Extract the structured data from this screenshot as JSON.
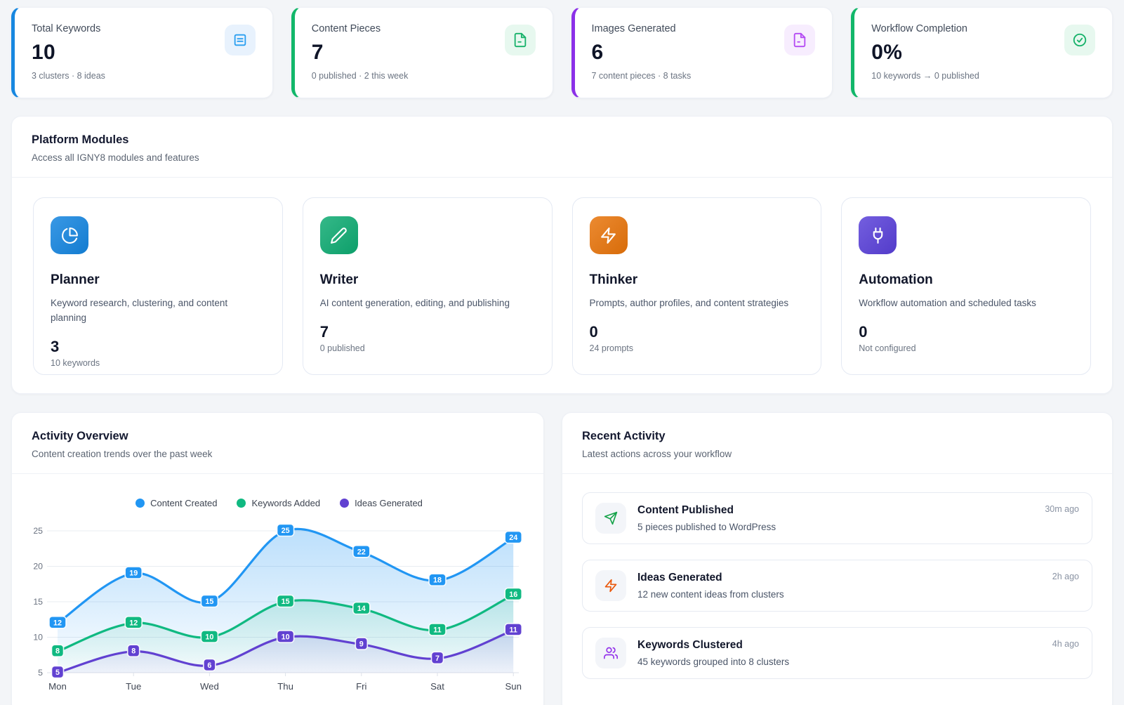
{
  "stats": [
    {
      "title": "Total Keywords",
      "value": "10",
      "subtitle": "3 clusters · 8 ideas",
      "accent": "#1787e0",
      "icon": "journal-list-icon",
      "icon_bg": "#e8f2fd",
      "icon_color": "#2b9ff0"
    },
    {
      "title": "Content Pieces",
      "value": "7",
      "subtitle": "0 published · 2 this week",
      "accent": "#12b76a",
      "icon": "file-text-icon",
      "icon_bg": "#e7f8ef",
      "icon_color": "#17b26a"
    },
    {
      "title": "Images Generated",
      "value": "6",
      "subtitle": "7 content pieces · 8 tasks",
      "accent": "#8b30e8",
      "icon": "image-file-icon",
      "icon_bg": "#f7edfe",
      "icon_color": "#b44af3"
    },
    {
      "title": "Workflow Completion",
      "value": "0%",
      "subtitle": "10 keywords → 0 published",
      "accent": "#12b76a",
      "icon": "check-circle-icon",
      "icon_bg": "#e7f8ef",
      "icon_color": "#17b26a"
    }
  ],
  "modules_section": {
    "title": "Platform Modules",
    "subtitle": "Access all IGNY8 modules and features"
  },
  "modules": [
    {
      "name": "Planner",
      "description": "Keyword research, clustering, and content planning",
      "value": "3",
      "caption": "10 keywords",
      "color": "#1485e0",
      "icon": "pie-chart-icon"
    },
    {
      "name": "Writer",
      "description": "AI content generation, editing, and publishing",
      "value": "7",
      "caption": "0 published",
      "color": "#0eab72",
      "icon": "pencil-icon"
    },
    {
      "name": "Thinker",
      "description": "Prompts, author profiles, and content strategies",
      "value": "0",
      "caption": "24 prompts",
      "color": "#e8740a",
      "icon": "zap-icon"
    },
    {
      "name": "Automation",
      "description": "Workflow automation and scheduled tasks",
      "value": "0",
      "caption": "Not configured",
      "color": "#5940d9",
      "icon": "plug-icon"
    }
  ],
  "activity_overview": {
    "title": "Activity Overview",
    "subtitle": "Content creation trends over the past week"
  },
  "chart_data": {
    "type": "line",
    "title": "Activity Overview",
    "x": [
      "Mon",
      "Tue",
      "Wed",
      "Thu",
      "Fri",
      "Sat",
      "Sun"
    ],
    "series": [
      {
        "name": "Content Created",
        "color": "#2196f3",
        "values": [
          12,
          19,
          15,
          25,
          22,
          18,
          24
        ]
      },
      {
        "name": "Keywords Added",
        "color": "#10b981",
        "values": [
          8,
          12,
          10,
          15,
          14,
          11,
          16
        ]
      },
      {
        "name": "Ideas Generated",
        "color": "#6141d1",
        "values": [
          5,
          8,
          6,
          10,
          9,
          7,
          11
        ]
      }
    ],
    "ylim": [
      5,
      25
    ],
    "yticks": [
      5,
      10,
      15,
      20,
      25
    ],
    "grid": true,
    "legend_position": "top",
    "area_fill": true,
    "point_labels": true
  },
  "recent_activity": {
    "title": "Recent Activity",
    "subtitle": "Latest actions across your workflow",
    "items": [
      {
        "title": "Content Published",
        "description": "5 pieces published to WordPress",
        "time": "30m ago",
        "icon": "send-icon",
        "icon_color": "#16a34a"
      },
      {
        "title": "Ideas Generated",
        "description": "12 new content ideas from clusters",
        "time": "2h ago",
        "icon": "zap-icon",
        "icon_color": "#ea580c"
      },
      {
        "title": "Keywords Clustered",
        "description": "45 keywords grouped into 8 clusters",
        "time": "4h ago",
        "icon": "users-icon",
        "icon_color": "#9333ea"
      }
    ]
  }
}
